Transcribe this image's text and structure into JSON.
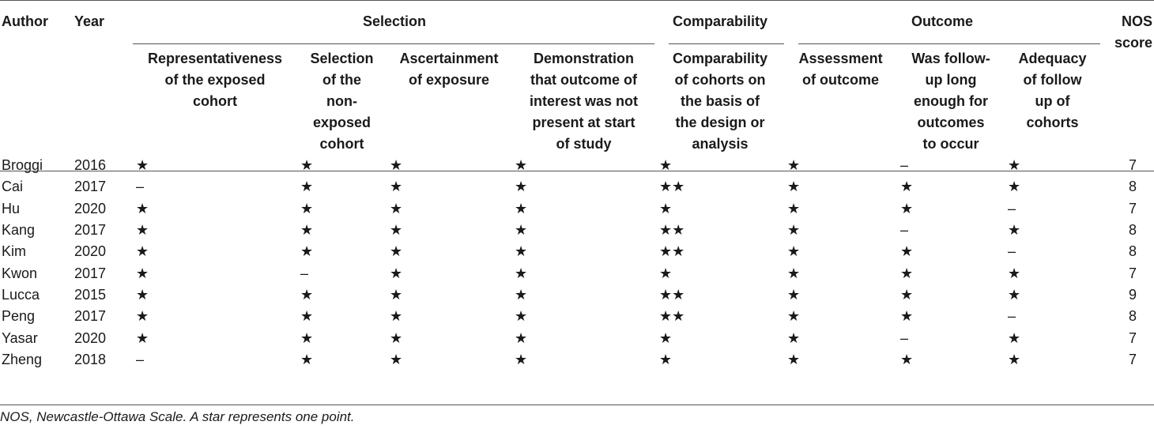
{
  "header": {
    "author": "Author",
    "year": "Year",
    "groups": {
      "selection": "Selection",
      "comparability": "Comparability",
      "outcome": "Outcome"
    },
    "nos_score": [
      "NOS",
      "score"
    ],
    "columns": [
      [
        "Representativeness",
        "of the exposed",
        "cohort"
      ],
      [
        "Selection",
        "of the",
        "non-",
        "exposed",
        "cohort"
      ],
      [
        "Ascertainment",
        "of exposure"
      ],
      [
        "Demonstration",
        "that outcome of",
        "interest was not",
        "present at start",
        "of study"
      ],
      [
        "Comparability",
        "of cohorts on",
        "the basis of",
        "the design or",
        "analysis"
      ],
      [
        "Assessment",
        "of outcome"
      ],
      [
        "Was follow-",
        "up long",
        "enough for",
        "outcomes",
        "to occur"
      ],
      [
        "Adequacy",
        "of follow",
        "up of",
        "cohorts"
      ]
    ]
  },
  "rows": [
    [
      "Broggi",
      "2016",
      "★",
      "★",
      "★",
      "★",
      "★",
      "★",
      "–",
      "★",
      "7"
    ],
    [
      "Cai",
      "2017",
      "–",
      "★",
      "★",
      "★",
      "★★",
      "★",
      "★",
      "★",
      "8"
    ],
    [
      "Hu",
      "2020",
      "★",
      "★",
      "★",
      "★",
      "★",
      "★",
      "★",
      "–",
      "7"
    ],
    [
      "Kang",
      "2017",
      "★",
      "★",
      "★",
      "★",
      "★★",
      "★",
      "–",
      "★",
      "8"
    ],
    [
      "Kim",
      "2020",
      "★",
      "★",
      "★",
      "★",
      "★★",
      "★",
      "★",
      "–",
      "8"
    ],
    [
      "Kwon",
      "2017",
      "★",
      "–",
      "★",
      "★",
      "★",
      "★",
      "★",
      "★",
      "7"
    ],
    [
      "Lucca",
      "2015",
      "★",
      "★",
      "★",
      "★",
      "★★",
      "★",
      "★",
      "★",
      "9"
    ],
    [
      "Peng",
      "2017",
      "★",
      "★",
      "★",
      "★",
      "★★",
      "★",
      "★",
      "–",
      "8"
    ],
    [
      "Yasar",
      "2020",
      "★",
      "★",
      "★",
      "★",
      "★",
      "★",
      "–",
      "★",
      "7"
    ],
    [
      "Zheng",
      "2018",
      "–",
      "★",
      "★",
      "★",
      "★",
      "★",
      "★",
      "★",
      "7"
    ]
  ],
  "footnote": "NOS, Newcastle-Ottawa Scale. A star represents one point."
}
